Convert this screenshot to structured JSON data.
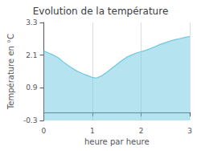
{
  "chart_data": {
    "type": "area",
    "title": "Evolution de la température",
    "xlabel": "heure par heure",
    "ylabel": "Température en °C",
    "x": [
      0,
      0.1,
      0.2,
      0.3,
      0.4,
      0.5,
      0.6,
      0.7,
      0.8,
      0.9,
      1.0,
      1.05,
      1.1,
      1.2,
      1.3,
      1.4,
      1.5,
      1.6,
      1.7,
      1.8,
      1.9,
      2.0,
      2.1,
      2.2,
      2.3,
      2.4,
      2.5,
      2.6,
      2.7,
      2.8,
      2.9,
      3.0
    ],
    "values": [
      2.25,
      2.18,
      2.1,
      2.0,
      1.85,
      1.72,
      1.6,
      1.5,
      1.42,
      1.35,
      1.28,
      1.26,
      1.27,
      1.35,
      1.48,
      1.62,
      1.76,
      1.9,
      2.02,
      2.1,
      2.18,
      2.23,
      2.28,
      2.35,
      2.42,
      2.5,
      2.56,
      2.62,
      2.67,
      2.71,
      2.75,
      2.79
    ],
    "color": "#6bc8e0",
    "xlim": [
      0,
      3
    ],
    "xticks": [
      0,
      1,
      2,
      3
    ],
    "ylim": [
      -0.3,
      3.3
    ],
    "yticks": [
      -0.3,
      0.9,
      2.1,
      3.3
    ],
    "grid": "x"
  }
}
